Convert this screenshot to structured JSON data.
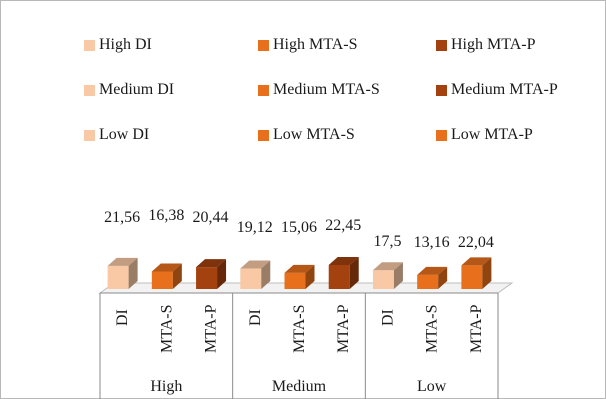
{
  "legend": [
    {
      "label": "High DI",
      "color": "#f9c9a5"
    },
    {
      "label": "High MTA-S",
      "color": "#e8701c"
    },
    {
      "label": "High MTA-P",
      "color": "#a3420f"
    },
    {
      "label": "Medium DI",
      "color": "#f9c9a5"
    },
    {
      "label": "Medium MTA-S",
      "color": "#e8701c"
    },
    {
      "label": "Medium MTA-P",
      "color": "#a3420f"
    },
    {
      "label": "Low DI",
      "color": "#f9c9a5"
    },
    {
      "label": "Low MTA-S",
      "color": "#e8701c"
    },
    {
      "label": "Low MTA-P",
      "color": "#e8701c"
    }
  ],
  "chart_data": {
    "type": "bar",
    "groups": [
      "High",
      "Medium",
      "Low"
    ],
    "categories": [
      "DI",
      "MTA-S",
      "MTA-P"
    ],
    "series": [
      {
        "name": "High",
        "values": [
          21.56,
          16.38,
          20.44
        ],
        "labels": [
          "21,56",
          "16,38",
          "20,44"
        ],
        "colors": [
          "#f9c9a5",
          "#e8701c",
          "#a3420f"
        ]
      },
      {
        "name": "Medium",
        "values": [
          19.12,
          15.06,
          22.45
        ],
        "labels": [
          "19,12",
          "15,06",
          "22,45"
        ],
        "colors": [
          "#f9c9a5",
          "#e8701c",
          "#a3420f"
        ]
      },
      {
        "name": "Low",
        "values": [
          17.5,
          13.16,
          22.04
        ],
        "labels": [
          "17,5",
          "13,16",
          "22,04"
        ],
        "colors": [
          "#f9c9a5",
          "#e8701c",
          "#e8701c"
        ]
      }
    ],
    "legend_position": "top",
    "grid": false
  }
}
